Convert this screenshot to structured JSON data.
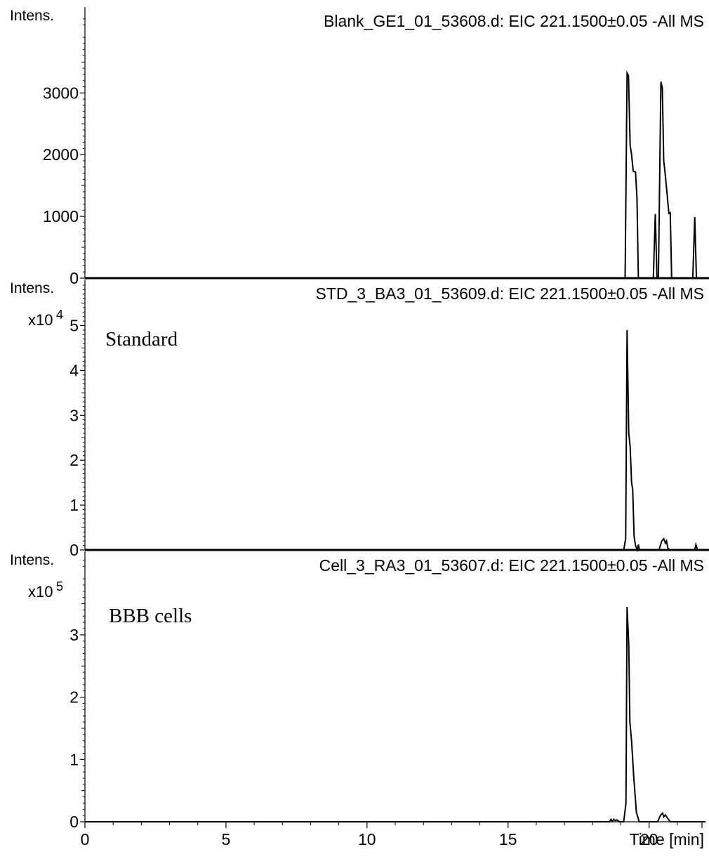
{
  "chart_data": [
    {
      "type": "line",
      "title": "Blank_GE1_01_53608.d: EIC 221.1500±0.05 -All MS",
      "ylabel": "Intens.",
      "y_multiplier": "",
      "annotation": "",
      "xlim": [
        0,
        22
      ],
      "ylim": [
        0,
        4300
      ],
      "y_ticks": [
        0,
        1000,
        2000,
        3000
      ],
      "y_tick_labels": [
        "0",
        "1000",
        "2000",
        "3000"
      ],
      "series": [
        {
          "x": [
            0,
            19.15,
            19.22,
            19.27,
            19.33,
            19.38,
            19.44,
            19.52,
            19.57,
            19.62,
            19.66,
            20.15,
            20.22,
            20.28,
            20.33,
            20.42,
            20.47,
            20.52,
            20.57,
            20.63,
            20.7,
            20.75,
            20.8,
            20.85,
            21.55,
            21.62,
            21.68,
            22
          ],
          "y": [
            0,
            0,
            3320,
            3280,
            2150,
            2000,
            1730,
            1720,
            1300,
            0,
            0,
            0,
            1040,
            0,
            0,
            3180,
            3080,
            1900,
            1700,
            1400,
            1050,
            1060,
            0,
            0,
            0,
            990,
            0,
            0
          ]
        }
      ]
    },
    {
      "type": "line",
      "title": "STD_3_BA3_01_53609.d: EIC 221.1500±0.05 -All MS",
      "ylabel": "Intens.",
      "y_multiplier": "x10",
      "y_exponent": "4",
      "annotation": "Standard",
      "xlim": [
        0,
        22
      ],
      "ylim": [
        0,
        5.9
      ],
      "y_ticks": [
        0,
        1,
        2,
        3,
        4,
        5
      ],
      "y_tick_labels": [
        "0",
        "1",
        "2",
        "3",
        "4",
        "5"
      ],
      "series": [
        {
          "x": [
            0,
            19.1,
            19.17,
            19.22,
            19.28,
            19.33,
            19.38,
            19.42,
            19.47,
            19.52,
            19.58,
            19.62,
            19.66,
            19.72,
            20.35,
            20.45,
            20.52,
            20.58,
            20.62,
            20.66,
            20.72,
            21.62,
            21.66,
            21.72,
            22
          ],
          "y": [
            0,
            0,
            0.25,
            4.9,
            2.6,
            2.3,
            1.5,
            1.35,
            0.3,
            0.1,
            0,
            0.12,
            0,
            0,
            0,
            0.2,
            0.25,
            0.15,
            0.2,
            0.05,
            0,
            0,
            0.12,
            0,
            0
          ]
        }
      ]
    },
    {
      "type": "line",
      "title": "Cell_3_RA3_01_53607.d: EIC 221.1500±0.05 -All MS",
      "ylabel": "Intens.",
      "y_multiplier": "x10",
      "y_exponent": "5",
      "annotation": "BBB cells",
      "xlim": [
        0,
        22
      ],
      "xticks": [
        0,
        5,
        10,
        15,
        20
      ],
      "xlabel": "Time [min]",
      "ylim": [
        0,
        4.25
      ],
      "y_ticks": [
        0,
        1,
        2,
        3
      ],
      "y_tick_labels": [
        "0",
        "1",
        "2",
        "3"
      ],
      "series": [
        {
          "x": [
            0,
            18.6,
            18.65,
            18.7,
            18.75,
            18.8,
            18.85,
            18.95,
            19.1,
            19.18,
            19.22,
            19.28,
            19.32,
            19.38,
            19.46,
            19.55,
            19.65,
            20.3,
            20.4,
            20.48,
            20.52,
            20.58,
            20.65,
            20.75,
            22
          ],
          "y": [
            0,
            0,
            0.04,
            0.01,
            0.04,
            0.02,
            0.03,
            0,
            0,
            0.3,
            3.45,
            2.85,
            1.6,
            1.3,
            0.7,
            0.15,
            0,
            0,
            0.1,
            0.14,
            0.08,
            0.11,
            0.06,
            0,
            0
          ]
        }
      ]
    }
  ]
}
